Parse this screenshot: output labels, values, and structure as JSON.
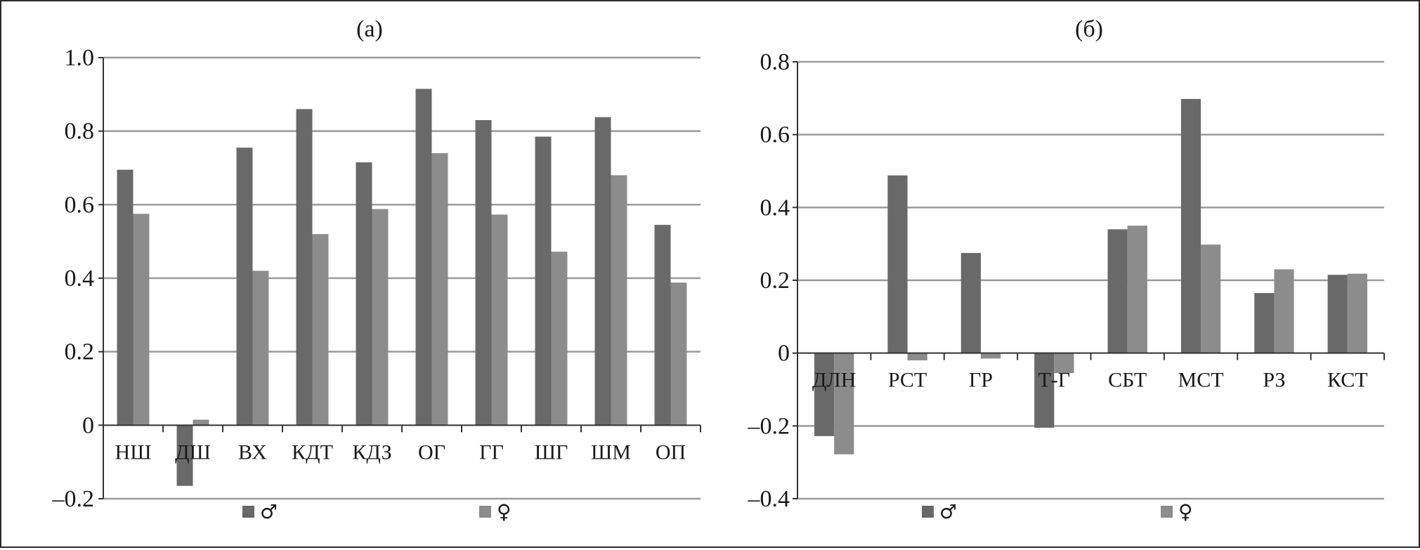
{
  "chart_data": [
    {
      "type": "bar",
      "title": "(а)",
      "categories": [
        "НШ",
        "ДШ",
        "ВХ",
        "КДТ",
        "КДЗ",
        "ОГ",
        "ГГ",
        "ШГ",
        "ШМ",
        "ОП"
      ],
      "series": [
        {
          "name": "♂",
          "values": [
            0.695,
            -0.165,
            0.755,
            0.86,
            0.715,
            0.915,
            0.83,
            0.785,
            0.838,
            0.545
          ]
        },
        {
          "name": "♀",
          "values": [
            0.575,
            0.015,
            0.42,
            0.52,
            0.588,
            0.74,
            0.573,
            0.472,
            0.68,
            0.388
          ]
        }
      ],
      "ylim": [
        -0.2,
        1.0
      ],
      "yticks": [
        -0.2,
        0,
        0.2,
        0.4,
        0.6,
        0.8,
        1.0
      ],
      "ytick_labels": [
        "–0.2",
        "0",
        "0.2",
        "0.4",
        "0.6",
        "0.8",
        "1.0"
      ],
      "grid": true,
      "legend": "bottom"
    },
    {
      "type": "bar",
      "title": "(б)",
      "categories": [
        "ДЛН",
        "РСТ",
        "ГР",
        "Т-Г",
        "СБТ",
        "МСТ",
        "РЗ",
        "КСТ"
      ],
      "series": [
        {
          "name": "♂",
          "values": [
            -0.228,
            0.488,
            0.275,
            -0.205,
            0.34,
            0.698,
            0.165,
            0.215
          ]
        },
        {
          "name": "♀",
          "values": [
            -0.278,
            -0.02,
            -0.015,
            -0.055,
            0.35,
            0.298,
            0.23,
            0.218
          ]
        }
      ],
      "ylim": [
        -0.4,
        0.8
      ],
      "yticks": [
        -0.4,
        -0.2,
        0,
        0.2,
        0.4,
        0.6,
        0.8
      ],
      "ytick_labels": [
        "–0.4",
        "–0.2",
        "0",
        "0.2",
        "0.4",
        "0.6",
        "0.8"
      ],
      "grid": true,
      "legend": "bottom"
    }
  ],
  "colors": {
    "male": "#696969",
    "female": "#8c8c8c",
    "grid": "#9a9a9a",
    "axis": "#333333"
  }
}
